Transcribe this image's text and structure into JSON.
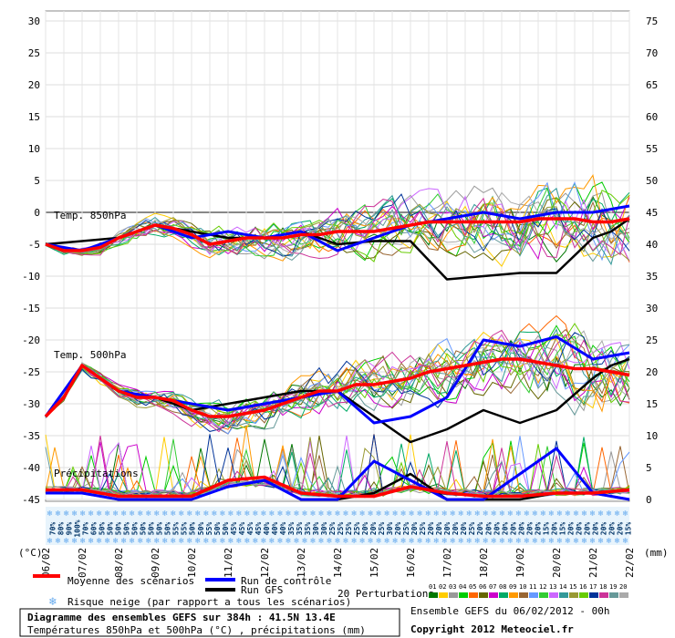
{
  "chart_data": {
    "type": "line",
    "title": "Diagramme des ensembles GEFS sur 384h : 41.5N 13.4E",
    "subtitle": "Températures 850hPa et 500hPa (°C) , précipitations (mm)",
    "left_axis": {
      "label": "(°C)",
      "ticks": [
        30,
        25,
        20,
        15,
        10,
        5,
        0,
        -5,
        -10,
        -15,
        -20,
        -25,
        -30,
        -35,
        -40,
        -45
      ],
      "range": [
        -45,
        30
      ]
    },
    "right_axis": {
      "label": "(mm)",
      "ticks": [
        75,
        70,
        65,
        60,
        55,
        50,
        45,
        40,
        35,
        30,
        25,
        20,
        15,
        10,
        5,
        0
      ],
      "range": [
        0,
        75
      ]
    },
    "x_dates": [
      "06/02",
      "07/02",
      "08/02",
      "09/02",
      "10/02",
      "11/02",
      "12/02",
      "13/02",
      "14/02",
      "15/02",
      "16/02",
      "17/02",
      "18/02",
      "19/02",
      "20/02",
      "21/02",
      "22/02"
    ],
    "panel_labels": {
      "t850": "Temp. 850hPa",
      "t500": "Temp. 500hPa",
      "precip": "Précipitations"
    },
    "snow_risk_pct": [
      "70%",
      "80%",
      "90%",
      "100%",
      "70%",
      "60%",
      "50%",
      "50%",
      "50%",
      "50%",
      "50%",
      "50%",
      "50%",
      "50%",
      "50%",
      "55%",
      "55%",
      "50%",
      "50%",
      "55%",
      "50%",
      "50%",
      "45%",
      "45%",
      "45%",
      "45%",
      "40%",
      "40%",
      "40%",
      "35%",
      "35%",
      "35%",
      "30%",
      "30%",
      "25%",
      "25%",
      "25%",
      "25%",
      "20%",
      "20%",
      "25%",
      "30%",
      "20%",
      "25%",
      "20%",
      "25%",
      "20%",
      "20%",
      "20%",
      "20%",
      "20%",
      "25%",
      "20%",
      "20%",
      "20%",
      "20%",
      "20%",
      "20%",
      "20%",
      "20%",
      "15%",
      "20%",
      "15%",
      "20%",
      "20%",
      "20%",
      "20%",
      "20%",
      "20%",
      "20%",
      "15%"
    ],
    "series": [
      {
        "name": "Moyenne des scénarios (850hPa)",
        "x": [
          0,
          0.5,
          1,
          1.5,
          2,
          2.5,
          3,
          3.5,
          4,
          4.5,
          5,
          5.5,
          6,
          6.5,
          7,
          7.5,
          8,
          8.5,
          9,
          9.5,
          10,
          10.5,
          11,
          11.5,
          12,
          12.5,
          13,
          13.5,
          14,
          14.5,
          15,
          15.5,
          16
        ],
        "values": [
          -5,
          -6,
          -6,
          -5.5,
          -4,
          -3,
          -2,
          -2.5,
          -3.5,
          -5,
          -4.5,
          -4,
          -4,
          -4,
          -3.5,
          -3.5,
          -3,
          -3,
          -3,
          -2.5,
          -2,
          -1.5,
          -1.5,
          -1.5,
          -1.5,
          -1.5,
          -1.5,
          -1,
          -1,
          -1,
          -1.5,
          -1.5,
          -1
        ]
      },
      {
        "name": "Run de contrôle (850hPa)",
        "x": [
          0,
          1,
          2,
          3,
          4,
          5,
          6,
          7,
          8,
          9,
          10,
          11,
          12,
          13,
          14,
          15,
          16
        ],
        "values": [
          -5,
          -6,
          -4,
          -2,
          -4,
          -3,
          -4,
          -3,
          -6,
          -4,
          -2,
          -1,
          0,
          -1,
          0,
          0,
          1
        ]
      },
      {
        "name": "Run GFS (850hPa)",
        "x": [
          0,
          1,
          2,
          3,
          4,
          5,
          6,
          7,
          8,
          9,
          10,
          11,
          12,
          13,
          14,
          15,
          15.5,
          16
        ],
        "values": [
          -5,
          -4.5,
          -4,
          -2,
          -3,
          -4,
          -4,
          -3,
          -5,
          -4.5,
          -4.5,
          -10.5,
          -10,
          -9.5,
          -9.5,
          -4,
          -3,
          -1
        ]
      },
      {
        "name": "Moyenne des scénarios (500hPa)",
        "x": [
          0,
          0.5,
          1,
          1.5,
          2,
          2.5,
          3,
          3.5,
          4,
          4.5,
          5,
          5.5,
          6,
          6.5,
          7,
          7.5,
          8,
          8.5,
          9,
          9.5,
          10,
          10.5,
          11,
          11.5,
          12,
          12.5,
          13,
          13.5,
          14,
          14.5,
          15,
          15.5,
          16
        ],
        "values": [
          -32,
          -29,
          -24,
          -26,
          -28,
          -29,
          -29,
          -29.5,
          -31,
          -32,
          -32,
          -31.5,
          -31,
          -30,
          -29,
          -28,
          -28,
          -27,
          -27,
          -26.5,
          -26,
          -25,
          -24.5,
          -24,
          -23.5,
          -23,
          -23,
          -23.5,
          -24,
          -24.5,
          -24.5,
          -25,
          -25.5
        ]
      },
      {
        "name": "Run de contrôle (500hPa)",
        "x": [
          0,
          1,
          2,
          3,
          4,
          5,
          6,
          7,
          8,
          9,
          10,
          11,
          12,
          13,
          14,
          15,
          16
        ],
        "values": [
          -32,
          -24,
          -28,
          -29,
          -30,
          -31,
          -30,
          -29,
          -28,
          -33,
          -32,
          -29,
          -20,
          -21,
          -19.5,
          -23,
          -22
        ]
      },
      {
        "name": "Run GFS (500hPa)",
        "x": [
          0,
          1,
          2,
          3,
          4,
          5,
          6,
          7,
          8,
          9,
          10,
          11,
          12,
          13,
          14,
          15,
          15.5,
          16
        ],
        "values": [
          -32,
          -24,
          -28,
          -29,
          -31,
          -30,
          -29,
          -28,
          -28,
          -32,
          -36,
          -34,
          -31,
          -33,
          -31,
          -26,
          -24,
          -23
        ]
      },
      {
        "name": "Moyenne des scénarios (précipitations, mm)",
        "x": [
          0,
          1,
          2,
          3,
          4,
          5,
          6,
          7,
          8,
          9,
          10,
          11,
          12,
          13,
          14,
          15,
          16
        ],
        "values": [
          1.5,
          1.5,
          0.5,
          0.5,
          0.5,
          3,
          3.5,
          1,
          0.5,
          0.5,
          2,
          1,
          0.5,
          0.5,
          1,
          1,
          1.5
        ]
      },
      {
        "name": "Run de contrôle (précipitations, mm)",
        "x": [
          0,
          1,
          2,
          3,
          4,
          5,
          6,
          7,
          8,
          9,
          10,
          11,
          12,
          13,
          14,
          15,
          16
        ],
        "values": [
          1,
          1,
          0,
          0,
          0,
          2,
          3,
          0,
          0,
          6,
          3,
          0,
          0,
          4,
          8,
          1,
          0
        ]
      },
      {
        "name": "Run GFS (précipitations, mm)",
        "x": [
          0,
          1,
          2,
          3,
          4,
          5,
          6,
          7,
          8,
          9,
          10,
          11,
          12,
          13,
          14,
          15,
          16
        ],
        "values": [
          1,
          1,
          0,
          0,
          0,
          2,
          3,
          0,
          0,
          1,
          4,
          0,
          0,
          0,
          1,
          1,
          0
        ]
      }
    ]
  },
  "legend": {
    "mean": "Moyenne des scénarios",
    "control": "Run de contrôle",
    "gfs": "Run GFS",
    "perturbations": "20 Perturbations",
    "perturbation_ids": [
      "01",
      "02",
      "03",
      "04",
      "05",
      "06",
      "07",
      "08",
      "09",
      "10",
      "11",
      "12",
      "13",
      "14",
      "15",
      "16",
      "17",
      "18",
      "19",
      "20"
    ],
    "snow": "Risque neige (par rapport a tous les scénarios)"
  },
  "colors": {
    "mean": "#ff0000",
    "control": "#0000ff",
    "gfs": "#000000",
    "perturbations": [
      "#007700",
      "#ffcc00",
      "#999999",
      "#00cc00",
      "#ff6600",
      "#666600",
      "#cc00cc",
      "#00aa66",
      "#ff9900",
      "#996633",
      "#6699ff",
      "#33cc33",
      "#cc66ff",
      "#339999",
      "#999933",
      "#66cc00",
      "#003399",
      "#cc3399",
      "#669999",
      "#aaaaaa"
    ]
  },
  "footer": {
    "run": "Ensemble GEFS du 06/02/2012 - 00h",
    "copyright": "Copyright 2012 Meteociel.fr"
  }
}
